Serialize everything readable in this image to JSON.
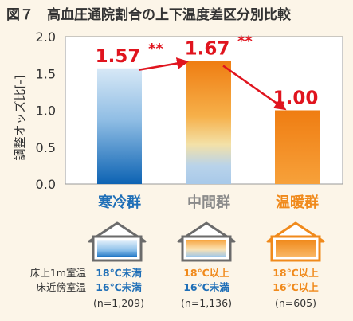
{
  "figure": {
    "title": "図７　高血圧通院割合の上下温度差区分別比較"
  },
  "chart_data": {
    "type": "bar",
    "categories": [
      "寒冷群",
      "中間群",
      "温暖群"
    ],
    "values": [
      1.57,
      1.67,
      1.0
    ],
    "value_labels": [
      "1.57",
      "1.67",
      "1.00"
    ],
    "significance": [
      "**",
      "**",
      ""
    ],
    "ylabel": "調整オッズ比[-]",
    "ylim": [
      0,
      2.0
    ],
    "yticks": [
      "0.0",
      "0.5",
      "1.0",
      "1.5",
      "2.0"
    ],
    "grid": false,
    "category_colors": [
      "#1f6fb7",
      "#8a8a8a",
      "#f08a1c"
    ],
    "value_label_color": "#e0141e"
  },
  "legend_rows": {
    "row1": "床上1m室温",
    "row2": "床近傍室温"
  },
  "groups": [
    {
      "cond1": "18℃未満",
      "cond2": "16℃未満",
      "n": "(n=1,209)",
      "cond1_color": "#1f6fb7",
      "cond2_color": "#1f6fb7"
    },
    {
      "cond1": "18℃以上",
      "cond2": "16℃未満",
      "n": "(n=1,136)",
      "cond1_color": "#f08a1c",
      "cond2_color": "#1f6fb7"
    },
    {
      "cond1": "18℃以上",
      "cond2": "16℃以上",
      "n": "(n=605)",
      "cond1_color": "#f08a1c",
      "cond2_color": "#f08a1c"
    }
  ]
}
